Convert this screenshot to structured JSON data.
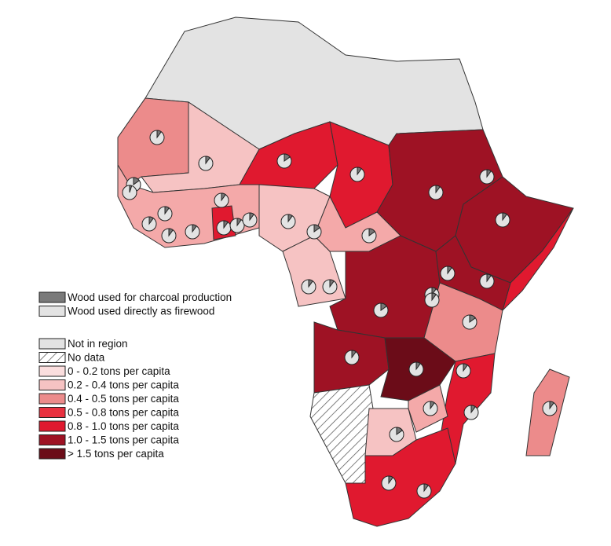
{
  "legend": {
    "pie": [
      "Wood used for charcoal production",
      "Wood used directly as firewood"
    ],
    "classes": [
      "Not in region",
      "No data",
      "0 - 0.2 tons per capita",
      "0.2 - 0.4 tons per capita",
      "0.4 - 0.5 tons per capita",
      "0.5 - 0.8 tons per capita",
      "0.8 - 1.0 tons per capita",
      "1.0 - 1.5 tons per capita",
      "> 1.5 tons per capita"
    ]
  }
}
